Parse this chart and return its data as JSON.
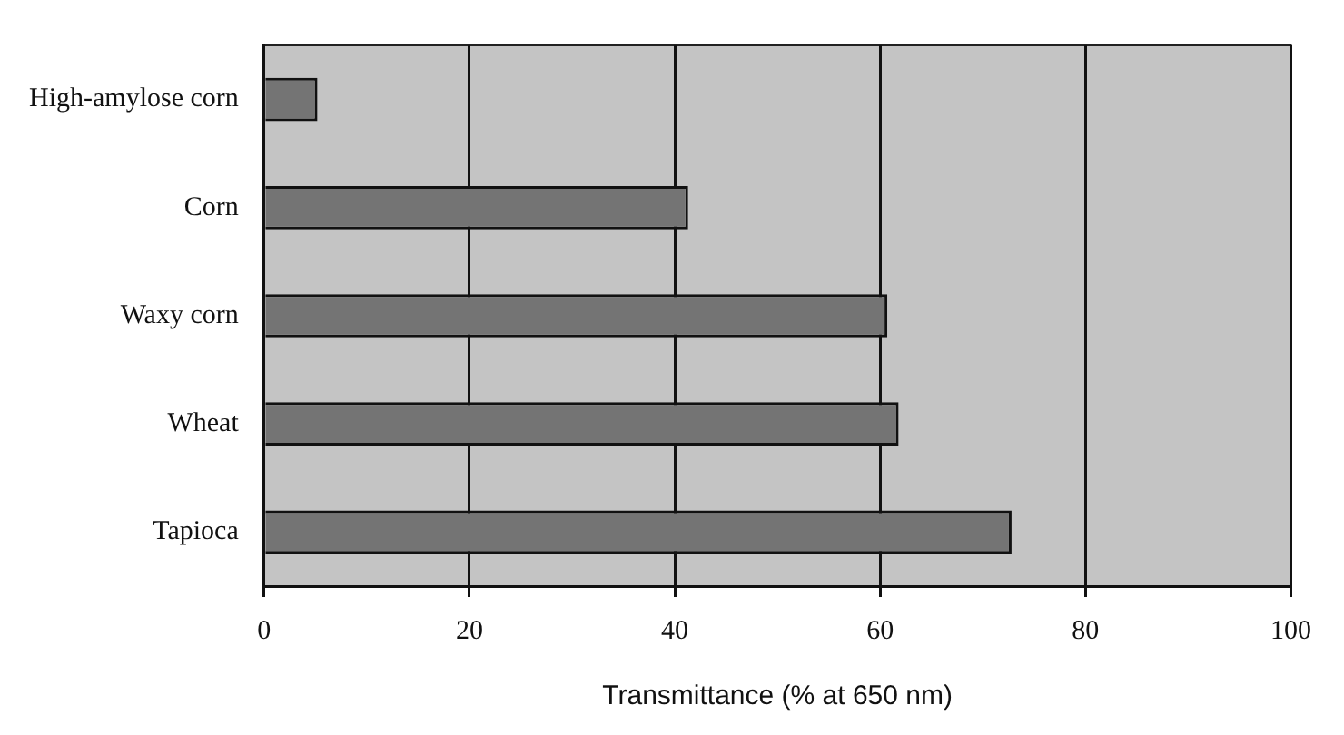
{
  "chart_data": {
    "type": "bar",
    "orientation": "horizontal",
    "xlabel": "Transmittance (% at 650 nm)",
    "categories": [
      "High-amylose corn",
      "Corn",
      "Waxy corn",
      "Wheat",
      "Tapioca"
    ],
    "values": [
      5.2,
      41.3,
      60.7,
      61.8,
      72.8
    ],
    "color": "#747474",
    "xlim": [
      0,
      100
    ],
    "xticks": [
      0,
      20,
      40,
      60,
      80,
      100
    ],
    "grid": "x",
    "legend": false
  }
}
